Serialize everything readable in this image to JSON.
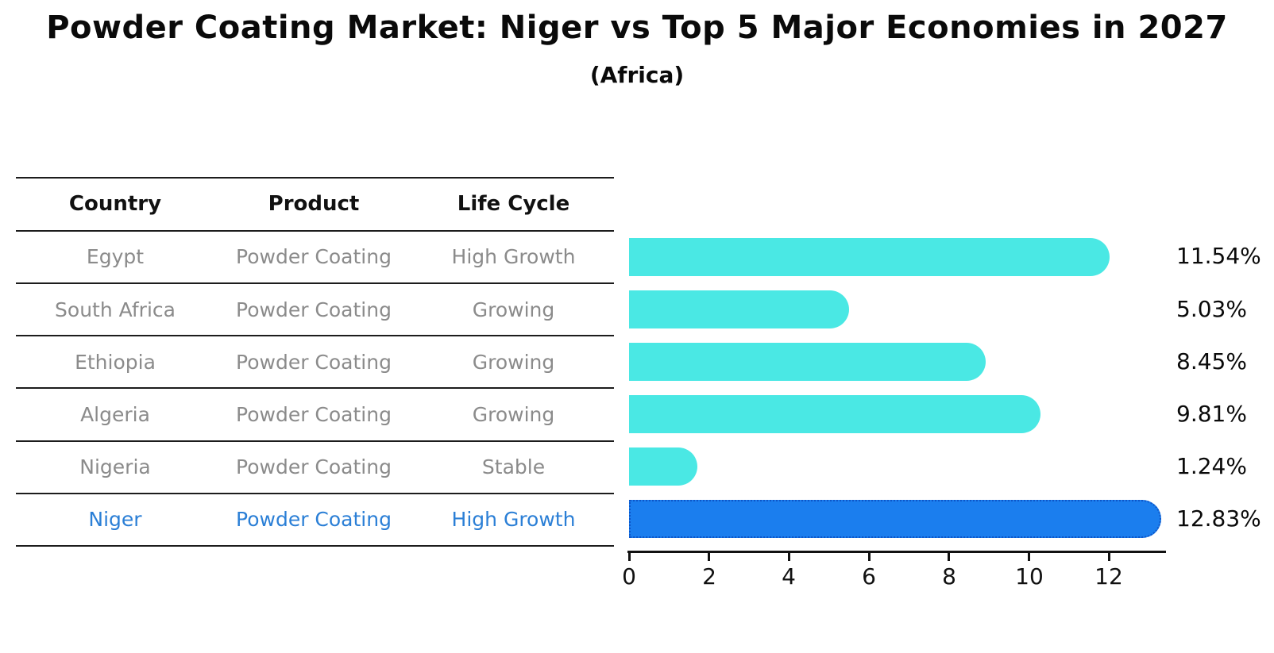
{
  "title": "Powder Coating Market: Niger vs Top 5 Major Economies in 2027",
  "subtitle": "(Africa)",
  "table": {
    "headers": {
      "country": "Country",
      "product": "Product",
      "life_cycle": "Life Cycle"
    },
    "rows": [
      {
        "country": "Egypt",
        "product": "Powder Coating",
        "life_cycle": "High Growth",
        "highlight": false
      },
      {
        "country": "South Africa",
        "product": "Powder Coating",
        "life_cycle": "Growing",
        "highlight": false
      },
      {
        "country": "Ethiopia",
        "product": "Powder Coating",
        "life_cycle": "Growing",
        "highlight": false
      },
      {
        "country": "Algeria",
        "product": "Powder Coating",
        "life_cycle": "Growing",
        "highlight": false
      },
      {
        "country": "Nigeria",
        "product": "Powder Coating",
        "life_cycle": "Stable",
        "highlight": false
      },
      {
        "country": "Niger",
        "product": "Powder Coating",
        "life_cycle": "High Growth",
        "highlight": true
      }
    ]
  },
  "chart_data": {
    "type": "bar",
    "orientation": "horizontal",
    "categories": [
      "Egypt",
      "South Africa",
      "Ethiopia",
      "Algeria",
      "Nigeria",
      "Niger"
    ],
    "values": [
      11.54,
      5.03,
      8.45,
      9.81,
      1.24,
      12.83
    ],
    "labels": [
      "11.54%",
      "5.03%",
      "8.45%",
      "9.81%",
      "1.24%",
      "12.83%"
    ],
    "value_unit": "percent CAGR",
    "xticks": [
      "0",
      "2",
      "4",
      "6",
      "8",
      "10",
      "12"
    ],
    "xlim": [
      0,
      13.44
    ],
    "grid": false,
    "legend": "none",
    "bar_color": "#4ae8e4",
    "highlight_color": "#1b7eee",
    "highlight_border_color": "#0d55c8",
    "highlight_index": 5
  },
  "colors": {
    "background": "#ffffff",
    "table_line": "#1c1c1c",
    "table_text": "#8b8b8b",
    "header_text": "#111111",
    "highlight_row_text": "#2b7fd6",
    "axis": "#111111"
  }
}
